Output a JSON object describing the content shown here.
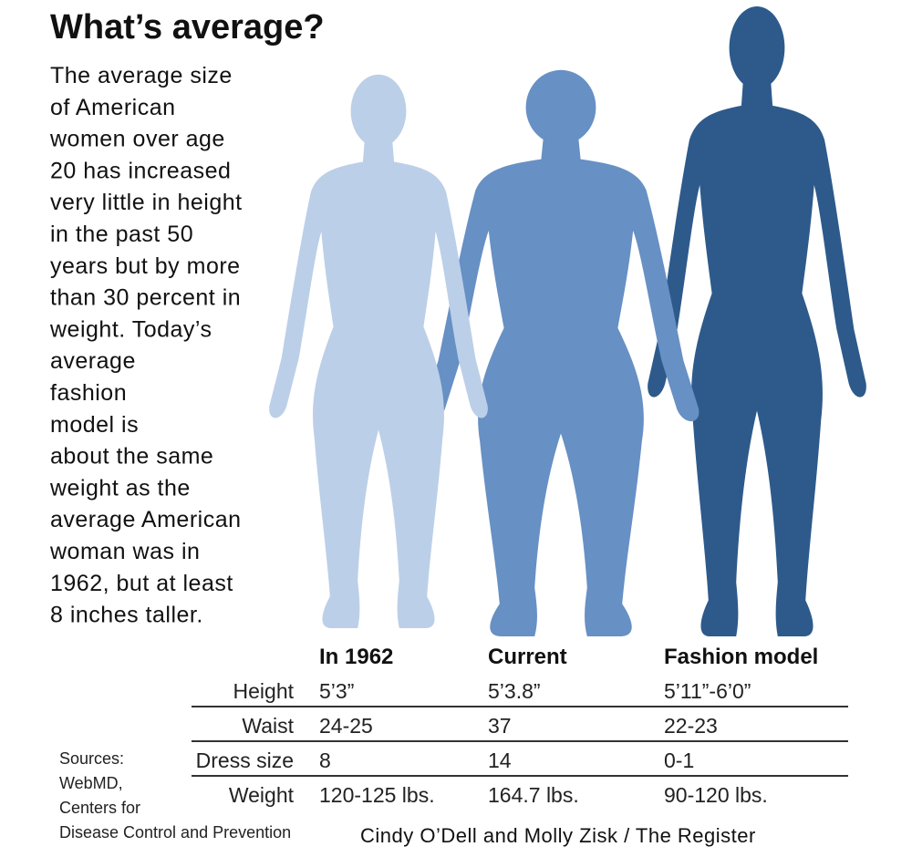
{
  "title": "What’s average?",
  "intro": [
    "The average size",
    "of American",
    "women over age",
    "20 has increased",
    "very little in height",
    "in the past 50",
    "years but by more",
    "than 30 percent in",
    "weight. Today’s",
    "average",
    "fashion",
    "model is",
    "about the same",
    "weight as the",
    "average American",
    "woman was in",
    "1962, but at least",
    "8 inches taller."
  ],
  "table": {
    "headers": [
      "In 1962",
      "Current",
      "Fashion model"
    ],
    "rows": [
      [
        "Height",
        "5’3”",
        "5’3.8”",
        "5’11”-6’0”"
      ],
      [
        "Waist",
        "24-25",
        "37",
        "22-23"
      ],
      [
        "Dress size",
        "8",
        "14",
        "0-1"
      ],
      [
        "Weight",
        "120-125 lbs.",
        "164.7 lbs.",
        "90-120 lbs."
      ]
    ]
  },
  "sources": [
    "Sources:",
    "WebMD,",
    "Centers for",
    "Disease Control and Prevention"
  ],
  "credit": "Cindy O’Dell and Molly Zisk / The Register"
}
